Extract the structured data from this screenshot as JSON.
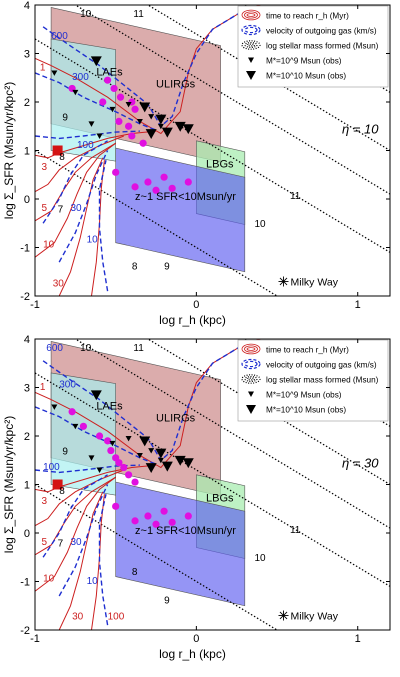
{
  "colors": {
    "sfr_contour": "#cc1f1f",
    "velocity_contour": "#1f2fd0",
    "mass_line": "#000000",
    "magenta_point": "#e010e0",
    "red_square": "#d41414",
    "ulirg_fill": "#cf9090",
    "lae_fill": "#a8f0f0",
    "lbg_fill": "#a8ecb0",
    "z1_fill": "#5c5cf0"
  },
  "chart_data": [
    {
      "type": "scatter",
      "xlabel": "log r_h (kpc)",
      "ylabel": "log Σ_SFR (Msun/yr/kpc²)",
      "xlim": [
        -1,
        1.2
      ],
      "ylim": [
        -2,
        4
      ],
      "xticks": [
        "-1",
        "0",
        "1"
      ],
      "yticks": [
        "-2",
        "-1",
        "0",
        "1",
        "2",
        "3",
        "4"
      ],
      "grid": false,
      "eta_label": "η = 10",
      "legend": {
        "placement": "top-right",
        "entries": [
          "time to reach r_h (Myr)",
          "velocity of outgoing gas (km/s)",
          "log stellar mass formed (Msun)",
          "M*=10^9 Msun (obs)",
          "M*=10^10 Msun (obs)"
        ]
      },
      "regions": [
        {
          "label": "ULIRGs",
          "x": [
            -0.9,
            0.15
          ],
          "y": [
            1.55,
            3.95
          ]
        },
        {
          "label": "LAEs",
          "x": [
            -0.9,
            -0.5
          ],
          "y": [
            1.0,
            3.3
          ]
        },
        {
          "label": "LBGs",
          "x": [
            0.0,
            0.3
          ],
          "y": [
            -0.3,
            1.2
          ]
        },
        {
          "label": "z~1 SFR<10Msun/yr",
          "x": [
            -0.5,
            0.3
          ],
          "y": [
            -0.9,
            1.05
          ]
        }
      ],
      "mass_lines": [
        {
          "label": "7",
          "x0": -0.9,
          "y0": 1.0
        },
        {
          "label": "8",
          "x0": -0.85,
          "y0": 3.3
        },
        {
          "label": "9",
          "x0": -0.55,
          "y0": 4.5
        },
        {
          "label": "10",
          "x0": -0.2,
          "y0": 5.4
        },
        {
          "label": "11",
          "x0": 0.2,
          "y0": 6.6
        }
      ],
      "mass_labels": [
        {
          "text": "10",
          "x": -0.72,
          "y": 3.75
        },
        {
          "text": "11",
          "x": -0.39,
          "y": 3.75
        },
        {
          "text": "9",
          "x": -0.83,
          "y": 1.62
        },
        {
          "text": "8",
          "x": -0.85,
          "y": 0.8
        },
        {
          "text": "7",
          "x": -0.86,
          "y": -0.28
        },
        {
          "text": "8",
          "x": -0.4,
          "y": -1.45
        },
        {
          "text": "9",
          "x": -0.2,
          "y": -1.45
        },
        {
          "text": "10",
          "x": 0.36,
          "y": -0.58
        },
        {
          "text": "11",
          "x": 0.58,
          "y": 0.0
        }
      ],
      "time_labels": [
        {
          "text": "1",
          "x": -0.97,
          "y": 2.65
        },
        {
          "text": "3",
          "x": -0.96,
          "y": 0.6
        },
        {
          "text": "5",
          "x": -0.96,
          "y": -0.25
        },
        {
          "text": "10",
          "x": -0.95,
          "y": -1.0
        },
        {
          "text": "30",
          "x": -0.89,
          "y": -1.8
        }
      ],
      "velocity_labels": [
        {
          "text": "600",
          "x": -0.9,
          "y": 3.3
        },
        {
          "text": "300",
          "x": -0.77,
          "y": 2.45
        },
        {
          "text": "100",
          "x": -0.74,
          "y": 1.05
        },
        {
          "text": "30",
          "x": -0.78,
          "y": -0.25
        },
        {
          "text": "10",
          "x": -0.68,
          "y": -0.9
        }
      ],
      "magenta_points": [
        [
          -0.77,
          2.28
        ],
        [
          -0.58,
          2.0
        ],
        [
          -0.55,
          2.45
        ],
        [
          -0.51,
          2.28
        ],
        [
          -0.47,
          2.1
        ],
        [
          -0.4,
          2.0
        ],
        [
          -0.38,
          1.85
        ],
        [
          -0.48,
          1.6
        ],
        [
          -0.42,
          1.5
        ],
        [
          -0.4,
          1.3
        ],
        [
          -0.33,
          1.15
        ],
        [
          -0.5,
          0.55
        ],
        [
          -0.3,
          0.35
        ],
        [
          -0.2,
          0.45
        ],
        [
          -0.15,
          0.22
        ],
        [
          -0.25,
          0.18
        ],
        [
          -0.38,
          0.25
        ],
        [
          -0.05,
          0.35
        ]
      ],
      "tri_1e9": [
        [
          -0.88,
          2.6
        ],
        [
          -0.75,
          2.2
        ],
        [
          -0.65,
          1.55
        ],
        [
          -0.52,
          1.85
        ],
        [
          -0.42,
          1.95
        ],
        [
          -0.35,
          1.6
        ],
        [
          -0.28,
          1.7
        ],
        [
          -0.22,
          1.5
        ],
        [
          -0.6,
          1.3
        ]
      ],
      "tri_1e10": [
        [
          -0.62,
          2.85
        ],
        [
          -0.32,
          1.9
        ],
        [
          -0.28,
          1.35
        ],
        [
          -0.18,
          1.38
        ],
        [
          -0.1,
          1.5
        ],
        [
          -0.05,
          1.45
        ],
        [
          -0.22,
          1.65
        ]
      ],
      "red_square": [
        -0.86,
        1.0
      ],
      "milky_way": {
        "label": "Milky Way",
        "x": 0.54,
        "y": -1.7
      }
    },
    {
      "type": "scatter",
      "xlabel": "log r_h (kpc)",
      "ylabel": "log Σ_SFR (Msun/yr/kpc²)",
      "xlim": [
        -1,
        1.2
      ],
      "ylim": [
        -2,
        4
      ],
      "xticks": [
        "-1",
        "0",
        "1"
      ],
      "yticks": [
        "-2",
        "-1",
        "0",
        "1",
        "2",
        "3",
        "4"
      ],
      "grid": false,
      "eta_label": "η = 30",
      "legend": {
        "placement": "top-right",
        "entries": [
          "time to reach r_h (Myr)",
          "velocity of outgoing gas (km/s)",
          "log stellar mass formed (Msun)",
          "M*=10^9 Msun (obs)",
          "M*=10^10 Msun (obs)"
        ]
      },
      "regions": [
        {
          "label": "ULIRGs",
          "x": [
            -0.9,
            0.15
          ],
          "y": [
            1.55,
            3.95
          ]
        },
        {
          "label": "LAEs",
          "x": [
            -0.9,
            -0.5
          ],
          "y": [
            1.0,
            3.3
          ]
        },
        {
          "label": "LBGs",
          "x": [
            0.0,
            0.3
          ],
          "y": [
            -0.3,
            1.2
          ]
        },
        {
          "label": "z~1 SFR<10Msun/yr",
          "x": [
            -0.5,
            0.3
          ],
          "y": [
            -0.9,
            1.05
          ]
        }
      ],
      "mass_lines": [
        {
          "label": "7",
          "x0": -0.9,
          "y0": 1.0
        },
        {
          "label": "8",
          "x0": -0.85,
          "y0": 3.3
        },
        {
          "label": "9",
          "x0": -0.55,
          "y0": 4.5
        },
        {
          "label": "10",
          "x0": -0.2,
          "y0": 5.4
        },
        {
          "label": "11",
          "x0": 0.2,
          "y0": 6.6
        }
      ],
      "mass_labels": [
        {
          "text": "10",
          "x": -0.72,
          "y": 3.75
        },
        {
          "text": "11",
          "x": -0.39,
          "y": 3.75
        },
        {
          "text": "9",
          "x": -0.83,
          "y": 1.62
        },
        {
          "text": "8",
          "x": -0.85,
          "y": 0.8
        },
        {
          "text": "7",
          "x": -0.86,
          "y": -0.28
        },
        {
          "text": "8",
          "x": -0.4,
          "y": -0.87
        },
        {
          "text": "9",
          "x": -0.2,
          "y": -1.45
        },
        {
          "text": "10",
          "x": 0.36,
          "y": -0.58
        },
        {
          "text": "11",
          "x": 0.58,
          "y": 0.0
        }
      ],
      "time_labels": [
        {
          "text": "1",
          "x": -0.97,
          "y": 2.95
        },
        {
          "text": "3",
          "x": -0.96,
          "y": 0.6
        },
        {
          "text": "5",
          "x": -0.96,
          "y": -0.25
        },
        {
          "text": "10",
          "x": -0.95,
          "y": -1.0
        },
        {
          "text": "30",
          "x": -0.77,
          "y": -1.78
        },
        {
          "text": "100",
          "x": -0.55,
          "y": -1.78
        }
      ],
      "velocity_labels": [
        {
          "text": "600",
          "x": -0.93,
          "y": 3.75
        },
        {
          "text": "300",
          "x": -0.85,
          "y": 3.0
        },
        {
          "text": "100",
          "x": -0.95,
          "y": 1.3
        },
        {
          "text": "30",
          "x": -0.78,
          "y": -0.25
        },
        {
          "text": "10",
          "x": -0.68,
          "y": -1.05
        }
      ],
      "magenta_points": [
        [
          -0.77,
          2.5
        ],
        [
          -0.6,
          2.0
        ],
        [
          -0.55,
          1.9
        ],
        [
          -0.53,
          1.7
        ],
        [
          -0.5,
          1.55
        ],
        [
          -0.48,
          1.45
        ],
        [
          -0.45,
          1.35
        ],
        [
          -0.42,
          1.2
        ],
        [
          -0.38,
          1.05
        ],
        [
          -0.7,
          2.2
        ],
        [
          -0.5,
          0.55
        ],
        [
          -0.3,
          0.35
        ],
        [
          -0.2,
          0.45
        ],
        [
          -0.15,
          0.22
        ],
        [
          -0.25,
          0.18
        ],
        [
          -0.38,
          0.25
        ],
        [
          -0.05,
          0.35
        ]
      ],
      "tri_1e9": [
        [
          -0.88,
          2.6
        ],
        [
          -0.75,
          2.2
        ],
        [
          -0.65,
          1.55
        ],
        [
          -0.52,
          1.85
        ],
        [
          -0.42,
          1.95
        ],
        [
          -0.35,
          1.6
        ],
        [
          -0.28,
          1.7
        ],
        [
          -0.22,
          1.5
        ],
        [
          -0.6,
          1.3
        ]
      ],
      "tri_1e10": [
        [
          -0.62,
          2.85
        ],
        [
          -0.32,
          1.9
        ],
        [
          -0.28,
          1.35
        ],
        [
          -0.18,
          1.38
        ],
        [
          -0.1,
          1.5
        ],
        [
          -0.05,
          1.45
        ],
        [
          -0.22,
          1.65
        ]
      ],
      "red_square": [
        -0.86,
        1.0
      ],
      "milky_way": {
        "label": "Milky Way",
        "x": 0.54,
        "y": -1.7
      }
    }
  ]
}
